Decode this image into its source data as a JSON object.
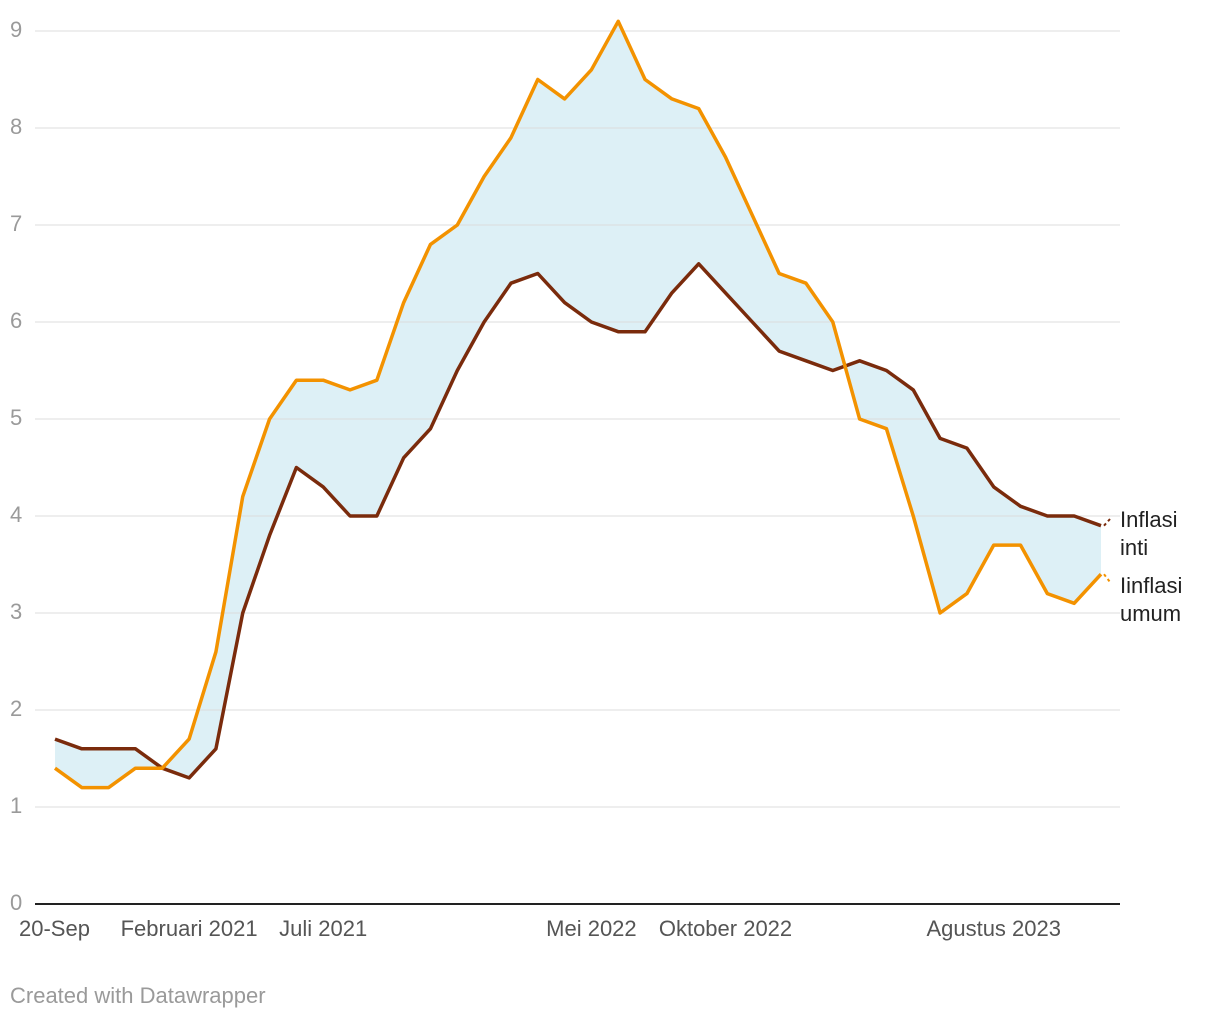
{
  "chart_data": {
    "type": "line",
    "categories": [
      "20-Sep",
      null,
      null,
      null,
      null,
      "Februari 2021",
      null,
      null,
      null,
      null,
      "Juli 2021",
      null,
      null,
      null,
      null,
      null,
      null,
      null,
      null,
      null,
      "Mei 2022",
      null,
      null,
      null,
      null,
      "Oktober 2022",
      null,
      null,
      null,
      null,
      null,
      null,
      null,
      null,
      null,
      "Agustus 2023",
      null,
      null,
      null,
      null
    ],
    "series": [
      {
        "name": "Inflasi inti",
        "color": "#7a2b0c",
        "values": [
          1.7,
          1.6,
          1.6,
          1.6,
          1.4,
          1.3,
          1.6,
          3.0,
          3.8,
          4.5,
          4.3,
          4.0,
          4.0,
          4.6,
          4.9,
          5.5,
          6.0,
          6.4,
          6.5,
          6.2,
          6.0,
          5.9,
          5.9,
          6.3,
          6.6,
          6.3,
          6.0,
          5.7,
          5.6,
          5.5,
          5.6,
          5.5,
          5.3,
          4.8,
          4.7,
          4.3,
          4.1,
          4.0,
          4.0,
          3.9
        ]
      },
      {
        "name": "Iinflasi umum",
        "color": "#f39200",
        "values": [
          1.4,
          1.2,
          1.2,
          1.4,
          1.4,
          1.7,
          2.6,
          4.2,
          5.0,
          5.4,
          5.4,
          5.3,
          5.4,
          6.2,
          6.8,
          7.0,
          7.5,
          7.9,
          8.5,
          8.3,
          8.6,
          9.1,
          8.5,
          8.3,
          8.2,
          7.7,
          7.1,
          6.5,
          6.4,
          6.0,
          5.0,
          4.9,
          4.0,
          3.0,
          3.2,
          3.7,
          3.7,
          3.2,
          3.1,
          3.4
        ]
      }
    ],
    "range_fill": "#ddf0f6",
    "ylim": [
      0,
      9
    ],
    "yticks": [
      0,
      1,
      2,
      3,
      4,
      5,
      6,
      7,
      8,
      9
    ],
    "grid": true,
    "footer": "Created with Datawrapper"
  }
}
